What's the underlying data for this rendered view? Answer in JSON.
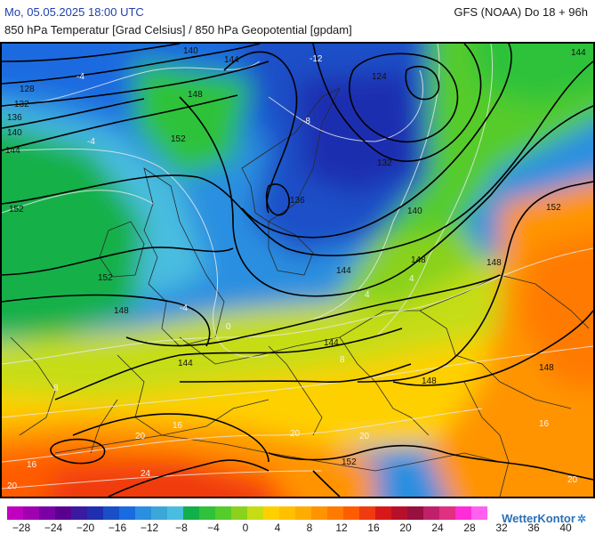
{
  "header": {
    "date": "Mo, 05.05.2025 18:00 UTC",
    "model": "GFS (NOAA) Do 18 + 96h",
    "subtitle": "850 hPa Temperatur [Grad Celsius] / 850 hPa Geopotential [gpdam]"
  },
  "map": {
    "geopotential_labels": [
      "140",
      "144",
      "128",
      "132",
      "136",
      "140",
      "144",
      "148",
      "152",
      "124",
      "132",
      "136",
      "140",
      "152",
      "144",
      "148",
      "152",
      "148",
      "144",
      "144",
      "148",
      "148",
      "152",
      "148",
      "144",
      "152"
    ],
    "temperature_labels": [
      "-4",
      "-12",
      "-4",
      "-8",
      "-4",
      "0",
      "4",
      "4",
      "8",
      "8",
      "16",
      "20",
      "24",
      "16",
      "20",
      "20",
      "20",
      "20",
      "16"
    ]
  },
  "legend": {
    "colors": [
      "#c000c0",
      "#a000b0",
      "#7a00a8",
      "#5a0090",
      "#3a1aa0",
      "#1f2fb0",
      "#1a4fc8",
      "#1a6be0",
      "#2a8fe0",
      "#3aa7d8",
      "#49bde0",
      "#12b04a",
      "#2fc23a",
      "#55cc2a",
      "#8ad21e",
      "#c6dd14",
      "#ffd000",
      "#ffc000",
      "#ffac00",
      "#ff9400",
      "#ff7a00",
      "#ff5c00",
      "#f03a10",
      "#d81818",
      "#b8102a",
      "#981040",
      "#c0206a",
      "#e0307f",
      "#ff2cd8",
      "#ff60f0"
    ],
    "ticks": [
      "−28",
      "−24",
      "−20",
      "−16",
      "−12",
      "−8",
      "−4",
      "0",
      "4",
      "8",
      "12",
      "16",
      "20",
      "24",
      "28",
      "32",
      "36",
      "40"
    ],
    "brand": "WetterKontor"
  }
}
